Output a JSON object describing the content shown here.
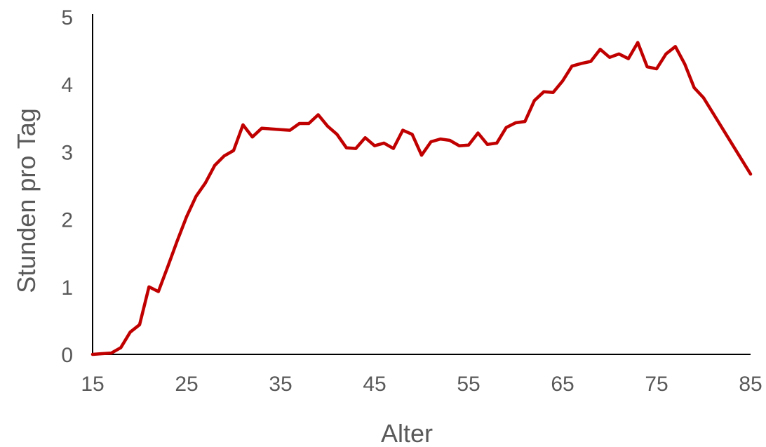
{
  "chart_data": {
    "type": "line",
    "title": "",
    "xlabel": "Alter",
    "ylabel": "Stunden pro Tag",
    "xlim": [
      15,
      85
    ],
    "ylim": [
      0,
      5
    ],
    "xticks": [
      15,
      25,
      35,
      45,
      55,
      65,
      75,
      85
    ],
    "yticks": [
      0,
      1,
      2,
      3,
      4,
      5
    ],
    "grid": false,
    "legend": "none",
    "series": [
      {
        "color": "#c00000",
        "x": [
          15,
          16,
          17,
          18,
          19,
          20,
          21,
          22,
          23,
          24,
          25,
          26,
          27,
          28,
          29,
          30,
          31,
          32,
          33,
          34,
          35,
          36,
          37,
          38,
          39,
          40,
          41,
          42,
          43,
          44,
          45,
          46,
          47,
          48,
          49,
          50,
          51,
          52,
          53,
          54,
          55,
          56,
          57,
          58,
          59,
          60,
          61,
          62,
          63,
          64,
          65,
          66,
          67,
          68,
          69,
          70,
          71,
          72,
          73,
          74,
          75,
          76,
          77,
          78,
          79,
          80,
          85
        ],
        "y": [
          0,
          0.01,
          0.02,
          0.1,
          0.33,
          0.44,
          1.0,
          0.93,
          1.3,
          1.68,
          2.04,
          2.34,
          2.54,
          2.8,
          2.94,
          3.02,
          3.4,
          3.22,
          3.35,
          3.34,
          3.33,
          3.32,
          3.42,
          3.42,
          3.55,
          3.38,
          3.26,
          3.06,
          3.05,
          3.21,
          3.09,
          3.13,
          3.05,
          3.32,
          3.26,
          2.95,
          3.15,
          3.19,
          3.17,
          3.09,
          3.1,
          3.28,
          3.11,
          3.13,
          3.36,
          3.43,
          3.45,
          3.76,
          3.89,
          3.88,
          4.05,
          4.27,
          4.31,
          4.34,
          4.52,
          4.4,
          4.45,
          4.38,
          4.62,
          4.26,
          4.23,
          4.45,
          4.56,
          4.3,
          3.95,
          3.8,
          2.67
        ]
      }
    ]
  }
}
